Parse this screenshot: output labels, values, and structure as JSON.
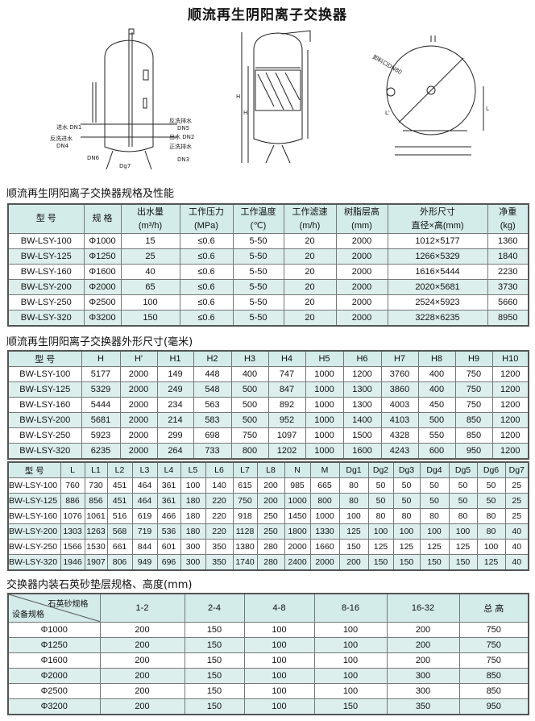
{
  "title": "顺流再生阴阳离子交换器",
  "diagram_labels": {
    "inlet": "进水 DN1",
    "backwash_inlet": "反洗进水",
    "backwash_inlet_dn": "DN4",
    "backwash_drain": "反洗排水",
    "backwash_drain_dn": "DN5",
    "outlet": "出水 DN2",
    "rinse_drain": "正洗排水",
    "rinse_drain_dn": "DN3",
    "dn6": "DN6",
    "dg7": "Dg7",
    "h": "H",
    "h_prime": "H'",
    "l": "L",
    "l_prime": "L'",
    "manhole": "卸料口DN80"
  },
  "performance": {
    "heading": "顺流再生阴阳离子交换器规格及性能",
    "headers": [
      [
        "型 号",
        ""
      ],
      [
        "规 格",
        ""
      ],
      [
        "出水量",
        "(m³/h)"
      ],
      [
        "工作压力",
        "(MPa)"
      ],
      [
        "工作温度",
        "(℃)"
      ],
      [
        "工作滤速",
        "(m/h)"
      ],
      [
        "树脂层高",
        "(mm)"
      ],
      [
        "外形尺寸",
        "直径×高(mm)"
      ],
      [
        "净重",
        "(kg)"
      ]
    ],
    "rows": [
      [
        "BW-LSY-100",
        "Φ1000",
        "15",
        "≤0.6",
        "5-50",
        "20",
        "2000",
        "1012×5177",
        "1360"
      ],
      [
        "BW-LSY-125",
        "Φ1250",
        "25",
        "≤0.6",
        "5-50",
        "20",
        "2000",
        "1266×5329",
        "1840"
      ],
      [
        "BW-LSY-160",
        "Φ1600",
        "40",
        "≤0.6",
        "5-50",
        "20",
        "2000",
        "1616×5444",
        "2230"
      ],
      [
        "BW-LSY-200",
        "Φ2000",
        "65",
        "≤0.6",
        "5-50",
        "20",
        "2000",
        "2020×5681",
        "3730"
      ],
      [
        "BW-LSY-250",
        "Φ2500",
        "100",
        "≤0.6",
        "5-50",
        "20",
        "2000",
        "2524×5923",
        "5660"
      ],
      [
        "BW-LSY-320",
        "Φ3200",
        "150",
        "≤0.6",
        "5-50",
        "20",
        "2000",
        "3228×6235",
        "8950"
      ]
    ]
  },
  "dimensions": {
    "heading": "顺流再生阴阳离子交换器外形尺寸(毫米)",
    "headers": [
      "型 号",
      "H",
      "H'",
      "H1",
      "H2",
      "H3",
      "H4",
      "H5",
      "H6",
      "H7",
      "H8",
      "H9",
      "H10"
    ],
    "rows": [
      [
        "BW-LSY-100",
        "5177",
        "2000",
        "149",
        "448",
        "400",
        "747",
        "1000",
        "1200",
        "3760",
        "400",
        "750",
        "1200"
      ],
      [
        "BW-LSY-125",
        "5329",
        "2000",
        "249",
        "548",
        "500",
        "847",
        "1000",
        "1300",
        "3860",
        "400",
        "750",
        "1200"
      ],
      [
        "BW-LSY-160",
        "5444",
        "2000",
        "234",
        "563",
        "500",
        "892",
        "1000",
        "1300",
        "4003",
        "450",
        "750",
        "1200"
      ],
      [
        "BW-LSY-200",
        "5681",
        "2000",
        "214",
        "583",
        "500",
        "952",
        "1000",
        "1400",
        "4103",
        "500",
        "850",
        "1200"
      ],
      [
        "BW-LSY-250",
        "5923",
        "2000",
        "299",
        "698",
        "750",
        "1097",
        "1000",
        "1500",
        "4328",
        "550",
        "850",
        "1200"
      ],
      [
        "BW-LSY-320",
        "6235",
        "2000",
        "264",
        "733",
        "800",
        "1202",
        "1000",
        "1600",
        "4243",
        "600",
        "950",
        "1200"
      ]
    ],
    "headers2": [
      "型 号",
      "L",
      "L1",
      "L2",
      "L3",
      "L4",
      "L5",
      "L6",
      "L7",
      "L8",
      "N",
      "M",
      "Dg1",
      "Dg2",
      "Dg3",
      "Dg4",
      "Dg5",
      "Dg6",
      "Dg7"
    ],
    "rows2": [
      [
        "BW-LSY-100",
        "760",
        "730",
        "451",
        "464",
        "361",
        "100",
        "140",
        "615",
        "200",
        "985",
        "665",
        "80",
        "50",
        "50",
        "50",
        "50",
        "50",
        "25"
      ],
      [
        "BW-LSY-125",
        "886",
        "856",
        "451",
        "464",
        "361",
        "180",
        "220",
        "750",
        "200",
        "1000",
        "800",
        "80",
        "50",
        "50",
        "50",
        "50",
        "50",
        "25"
      ],
      [
        "BW-LSY-160",
        "1076",
        "1061",
        "516",
        "619",
        "466",
        "180",
        "220",
        "918",
        "250",
        "1450",
        "1000",
        "100",
        "80",
        "80",
        "80",
        "80",
        "80",
        "25"
      ],
      [
        "BW-LSY-200",
        "1303",
        "1263",
        "568",
        "719",
        "536",
        "180",
        "220",
        "1128",
        "250",
        "1800",
        "1330",
        "125",
        "100",
        "100",
        "100",
        "100",
        "80",
        "40"
      ],
      [
        "BW-LSY-250",
        "1566",
        "1530",
        "661",
        "844",
        "601",
        "300",
        "350",
        "1380",
        "280",
        "2000",
        "1660",
        "150",
        "125",
        "125",
        "125",
        "125",
        "100",
        "40"
      ],
      [
        "BW-LSY-320",
        "1946",
        "1907",
        "806",
        "949",
        "696",
        "300",
        "350",
        "1740",
        "280",
        "2400",
        "2000",
        "200",
        "150",
        "150",
        "150",
        "150",
        "125",
        "40"
      ]
    ]
  },
  "quartz": {
    "heading": "交换器内装石英砂垫层规格、高度(mm)",
    "corner_top": "石英砂规格",
    "corner_bottom": "设备规格",
    "headers": [
      "1-2",
      "2-4",
      "4-8",
      "8-16",
      "16-32",
      "总 高"
    ],
    "rows": [
      [
        "Φ1000",
        "200",
        "150",
        "100",
        "100",
        "200",
        "750"
      ],
      [
        "Φ1250",
        "200",
        "150",
        "100",
        "100",
        "200",
        "750"
      ],
      [
        "Φ1600",
        "200",
        "150",
        "100",
        "100",
        "200",
        "750"
      ],
      [
        "Φ2000",
        "200",
        "150",
        "100",
        "100",
        "300",
        "850"
      ],
      [
        "Φ2500",
        "200",
        "150",
        "100",
        "100",
        "300",
        "850"
      ],
      [
        "Φ3200",
        "200",
        "150",
        "100",
        "150",
        "350",
        "950"
      ]
    ]
  },
  "colors": {
    "header_bg": "#d3ebe9",
    "alt_row_bg": "#dcefed",
    "border": "#555555"
  }
}
